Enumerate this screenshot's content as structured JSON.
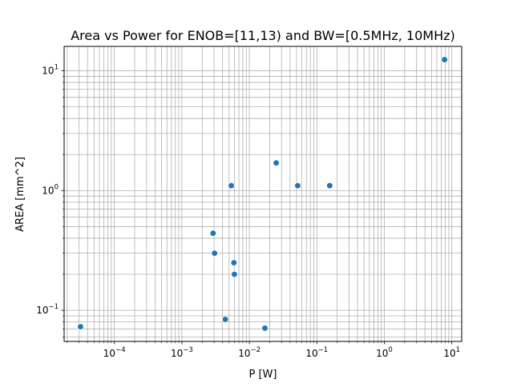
{
  "chart_data": {
    "type": "scatter",
    "title": "Area vs Power for ENOB=[11,13) and BW=[0.5MHz, 10MHz)",
    "xlabel": "P [W]",
    "ylabel": "AREA [mm^2]",
    "xscale": "log",
    "yscale": "log",
    "xlim": [
      1.8e-05,
      14
    ],
    "ylim": [
      0.055,
      16
    ],
    "grid": true,
    "grid_which": "both",
    "legend": "none",
    "marker_color": "#1f77b4",
    "x_ticks": [
      {
        "value": 0.0001,
        "base": "10",
        "exp": "−4"
      },
      {
        "value": 0.001,
        "base": "10",
        "exp": "−3"
      },
      {
        "value": 0.01,
        "base": "10",
        "exp": "−2"
      },
      {
        "value": 0.1,
        "base": "10",
        "exp": "−1"
      },
      {
        "value": 1,
        "base": "10",
        "exp": "0"
      },
      {
        "value": 10,
        "base": "10",
        "exp": "1"
      }
    ],
    "y_ticks": [
      {
        "value": 0.1,
        "base": "10",
        "exp": "−1"
      },
      {
        "value": 1,
        "base": "10",
        "exp": "0"
      },
      {
        "value": 10,
        "base": "10",
        "exp": "1"
      }
    ],
    "points": [
      {
        "x": 3.15e-05,
        "y": 0.073
      },
      {
        "x": 0.0029,
        "y": 0.44
      },
      {
        "x": 0.00305,
        "y": 0.3
      },
      {
        "x": 0.0044,
        "y": 0.084
      },
      {
        "x": 0.0054,
        "y": 1.1
      },
      {
        "x": 0.0059,
        "y": 0.25
      },
      {
        "x": 0.006,
        "y": 0.2
      },
      {
        "x": 0.017,
        "y": 0.071
      },
      {
        "x": 0.025,
        "y": 1.7
      },
      {
        "x": 0.052,
        "y": 1.1
      },
      {
        "x": 0.155,
        "y": 1.1
      },
      {
        "x": 7.8,
        "y": 12.4
      }
    ]
  }
}
